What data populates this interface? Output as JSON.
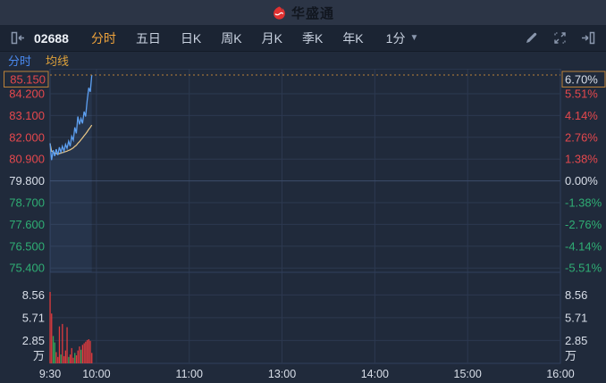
{
  "header": {
    "app_name": "华盛通"
  },
  "toolbar": {
    "symbol": "02688",
    "tabs": [
      {
        "label": "分时",
        "active": true
      },
      {
        "label": "五日",
        "active": false
      },
      {
        "label": "日K",
        "active": false
      },
      {
        "label": "周K",
        "active": false
      },
      {
        "label": "月K",
        "active": false
      },
      {
        "label": "季K",
        "active": false
      },
      {
        "label": "年K",
        "active": false
      }
    ],
    "interval_value": "1分",
    "caret": "▼"
  },
  "legend": {
    "items": [
      {
        "label": "分时",
        "color": "#4a8af0"
      },
      {
        "label": "均线",
        "color": "#dfa23b"
      }
    ]
  },
  "colors": {
    "up": "#e5484d",
    "down": "#2fae74",
    "flat": "#d9dfe9",
    "bar_up": "#e03b3e",
    "bar_down": "#31a558",
    "grid": "#2c3950",
    "grid_strong": "#3d4d6b",
    "border": "#31405c",
    "price_line": "#5da0f2",
    "avg_line": "#ecc987",
    "area_fill": "rgba(100,150,220,0.10)",
    "high_line": "#bd8238",
    "time_label": "#d9dfe9"
  },
  "chart_data": {
    "type": "line",
    "title": "02688 intraday 1-min chart",
    "prev_close": 79.8,
    "high_box": {
      "price": "85.150",
      "pct": "6.70%"
    },
    "price_axis_left": [
      "84.200",
      "83.100",
      "82.000",
      "80.900",
      "79.800",
      "78.700",
      "77.600",
      "76.500",
      "75.400"
    ],
    "pct_axis_right": [
      "5.51%",
      "4.14%",
      "2.76%",
      "1.38%",
      "0.00%",
      "-1.38%",
      "-2.76%",
      "-4.14%",
      "-5.51%"
    ],
    "volume_axis": [
      "8.56",
      "5.71",
      "2.85"
    ],
    "volume_unit": "万",
    "time_axis": [
      {
        "label": "9:30",
        "min": 0
      },
      {
        "label": "10:00",
        "min": 30
      },
      {
        "label": "11:00",
        "min": 90
      },
      {
        "label": "13:00",
        "min": 150
      },
      {
        "label": "14:00",
        "min": 210
      },
      {
        "label": "15:00",
        "min": 270
      },
      {
        "label": "16:00",
        "min": 330
      }
    ],
    "grid_minutes": [
      30,
      90,
      150,
      210,
      270
    ],
    "session_minutes": 330,
    "series": [
      {
        "name": "分时",
        "values": [
          81.7,
          80.85,
          81.35,
          81.05,
          81.4,
          81.1,
          81.5,
          81.25,
          81.55,
          81.3,
          81.65,
          81.45,
          81.8,
          81.55,
          82.05,
          81.85,
          82.5,
          82.2,
          83.05,
          82.65,
          82.95,
          82.7,
          83.3,
          83.05,
          83.85,
          84.5,
          84.3,
          85.15
        ]
      },
      {
        "name": "均线",
        "values": [
          81.7,
          81.3,
          81.25,
          81.2,
          81.18,
          81.16,
          81.18,
          81.2,
          81.23,
          81.25,
          81.28,
          81.3,
          81.34,
          81.37,
          81.42,
          81.47,
          81.54,
          81.6,
          81.7,
          81.78,
          81.88,
          81.97,
          82.08,
          82.17,
          82.28,
          82.4,
          82.5,
          82.62
        ]
      }
    ],
    "volume": {
      "values": [
        8.9,
        6.2,
        3.4,
        2.6,
        1.4,
        0.8,
        4.6,
        1.1,
        4.9,
        0.9,
        1.6,
        4.5,
        0.8,
        1.1,
        1.9,
        0.7,
        1.3,
        1.0,
        1.6,
        2.1,
        1.7,
        2.3,
        2.5,
        2.7,
        2.9,
        3.0,
        2.8,
        1.3
      ],
      "directions": [
        "u",
        "u",
        "d",
        "d",
        "u",
        "u",
        "u",
        "d",
        "u",
        "u",
        "u",
        "u",
        "d",
        "u",
        "u",
        "u",
        "d",
        "u",
        "u",
        "u",
        "d",
        "u",
        "u",
        "u",
        "u",
        "u",
        "u",
        "u"
      ]
    }
  }
}
